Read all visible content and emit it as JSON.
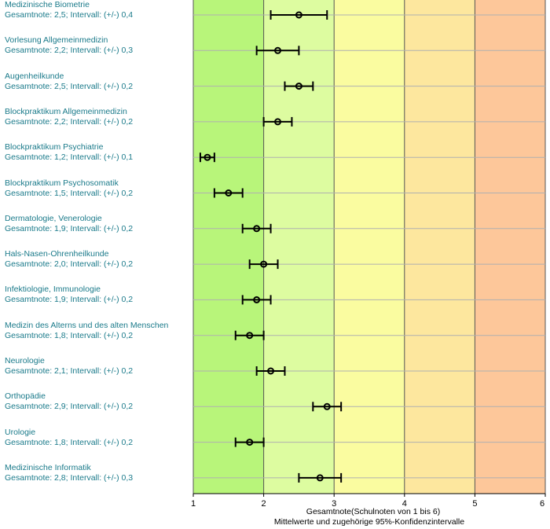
{
  "chart_data": {
    "type": "scatter",
    "xlabel": "Gesamtnote(Schulnoten von 1 bis 6)",
    "subtitle": "Mittelwerte und zugehörige 95%-Konfidenzintervalle",
    "xlim": [
      1,
      6
    ],
    "x_ticks": [
      "1",
      "2",
      "3",
      "4",
      "5",
      "6"
    ],
    "bands": [
      {
        "from": 1,
        "to": 2,
        "color": "#b8f57a"
      },
      {
        "from": 2,
        "to": 3,
        "color": "#ddfca0"
      },
      {
        "from": 3,
        "to": 4,
        "color": "#fafca0"
      },
      {
        "from": 4,
        "to": 5,
        "color": "#fde79e"
      },
      {
        "from": 5,
        "to": 6,
        "color": "#fdc79a"
      }
    ],
    "items": [
      {
        "name": "Medizinische Biometrie",
        "detail": "Gesamtnote: 2,5;  Intervall: (+/-) 0,4",
        "mean": 2.5,
        "ci": 0.4
      },
      {
        "name": "Vorlesung Allgemeinmedizin",
        "detail": "Gesamtnote: 2,2;  Intervall: (+/-) 0,3",
        "mean": 2.2,
        "ci": 0.3
      },
      {
        "name": "Augenheilkunde",
        "detail": "Gesamtnote: 2,5;  Intervall: (+/-) 0,2",
        "mean": 2.5,
        "ci": 0.2
      },
      {
        "name": "Blockpraktikum Allgemeinmedizin",
        "detail": "Gesamtnote: 2,2;  Intervall: (+/-) 0,2",
        "mean": 2.2,
        "ci": 0.2
      },
      {
        "name": "Blockpraktikum Psychiatrie",
        "detail": "Gesamtnote: 1,2;  Intervall: (+/-) 0,1",
        "mean": 1.2,
        "ci": 0.1
      },
      {
        "name": "Blockpraktikum Psychosomatik",
        "detail": "Gesamtnote: 1,5;  Intervall: (+/-) 0,2",
        "mean": 1.5,
        "ci": 0.2
      },
      {
        "name": "Dermatologie, Venerologie",
        "detail": "Gesamtnote: 1,9;  Intervall: (+/-) 0,2",
        "mean": 1.9,
        "ci": 0.2
      },
      {
        "name": "Hals-Nasen-Ohrenheilkunde",
        "detail": "Gesamtnote: 2,0;  Intervall: (+/-) 0,2",
        "mean": 2.0,
        "ci": 0.2
      },
      {
        "name": "Infektiologie, Immunologie",
        "detail": "Gesamtnote: 1,9;  Intervall: (+/-) 0,2",
        "mean": 1.9,
        "ci": 0.2
      },
      {
        "name": "Medizin des Alterns und des alten Menschen",
        "detail": "Gesamtnote: 1,8;  Intervall: (+/-) 0,2",
        "mean": 1.8,
        "ci": 0.2
      },
      {
        "name": "Neurologie",
        "detail": "Gesamtnote: 2,1;  Intervall: (+/-) 0,2",
        "mean": 2.1,
        "ci": 0.2
      },
      {
        "name": "Orthopädie",
        "detail": "Gesamtnote: 2,9;  Intervall: (+/-) 0,2",
        "mean": 2.9,
        "ci": 0.2
      },
      {
        "name": "Urologie",
        "detail": "Gesamtnote: 1,8;  Intervall: (+/-) 0,2",
        "mean": 1.8,
        "ci": 0.2
      },
      {
        "name": "Medizinische Informatik",
        "detail": "Gesamtnote: 2,8;  Intervall: (+/-) 0,3",
        "mean": 2.8,
        "ci": 0.3
      }
    ]
  }
}
